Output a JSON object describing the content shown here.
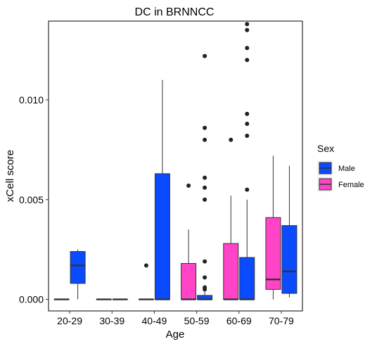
{
  "chart_data": {
    "type": "box",
    "title": "DC in BRNNCC",
    "xlabel": "Age",
    "ylabel": "xCell score",
    "categories": [
      "20-29",
      "30-39",
      "40-49",
      "50-59",
      "60-69",
      "70-79"
    ],
    "y_ticks": [
      0.0,
      0.005,
      0.01
    ],
    "y_tick_labels": [
      "0.000",
      "0.005",
      "0.010"
    ],
    "ylim": [
      -0.00058,
      0.01395
    ],
    "grid": false,
    "legend": {
      "title": "Sex",
      "position": "right",
      "entries": [
        {
          "label": "Male",
          "color": "#0a4bff"
        },
        {
          "label": "Female",
          "color": "#ff44c8"
        }
      ]
    },
    "series": [
      {
        "name": "Male",
        "color": "#0a4bff",
        "boxes": [
          {
            "category": "20-29",
            "whisker_low": 0.0,
            "q1": 0.0008,
            "median": 0.0017,
            "q3": 0.0024,
            "whisker_high": 0.0025,
            "outliers": []
          },
          {
            "category": "30-39",
            "whisker_low": 0.0,
            "q1": 0.0,
            "median": 0.0,
            "q3": 0.0,
            "whisker_high": 0.0,
            "outliers": []
          },
          {
            "category": "40-49",
            "whisker_low": 0.0,
            "q1": 0.0,
            "median": 0.0,
            "q3": 0.0063,
            "whisker_high": 0.011,
            "outliers": []
          },
          {
            "category": "50-59",
            "whisker_low": 0.0,
            "q1": 0.0,
            "median": 0.0,
            "q3": 0.0002,
            "whisker_high": 0.0004,
            "outliers": [
              0.0122,
              0.0086,
              0.008,
              0.0061,
              0.0056,
              0.005,
              0.0019,
              0.0011,
              0.0006,
              0.0005
            ]
          },
          {
            "category": "60-69",
            "whisker_low": 0.0,
            "q1": 0.0,
            "median": 0.0,
            "q3": 0.0021,
            "whisker_high": 0.005,
            "outliers": [
              0.0138,
              0.0135,
              0.0126,
              0.012,
              0.0093,
              0.0088,
              0.0082,
              0.0055
            ]
          },
          {
            "category": "70-79",
            "whisker_low": 0.0001,
            "q1": 0.0003,
            "median": 0.0014,
            "q3": 0.0037,
            "whisker_high": 0.0067,
            "outliers": []
          }
        ]
      },
      {
        "name": "Female",
        "color": "#ff44c8",
        "boxes": [
          {
            "category": "20-29",
            "whisker_low": 0.0,
            "q1": 0.0,
            "median": 0.0,
            "q3": 0.0,
            "whisker_high": 0.0,
            "outliers": []
          },
          {
            "category": "30-39",
            "whisker_low": 0.0,
            "q1": 0.0,
            "median": 0.0,
            "q3": 0.0,
            "whisker_high": 0.0,
            "outliers": []
          },
          {
            "category": "40-49",
            "whisker_low": 0.0,
            "q1": 0.0,
            "median": 0.0,
            "q3": 0.0,
            "whisker_high": 0.0,
            "outliers": [
              0.0017
            ]
          },
          {
            "category": "50-59",
            "whisker_low": 0.0,
            "q1": 0.0,
            "median": 0.0,
            "q3": 0.0018,
            "whisker_high": 0.0035,
            "outliers": [
              0.0057
            ]
          },
          {
            "category": "60-69",
            "whisker_low": 0.0,
            "q1": 0.0,
            "median": 0.0,
            "q3": 0.0028,
            "whisker_high": 0.0052,
            "outliers": [
              0.008
            ]
          },
          {
            "category": "70-79",
            "whisker_low": 0.0,
            "q1": 0.0005,
            "median": 0.001,
            "q3": 0.0041,
            "whisker_high": 0.0072,
            "outliers": []
          }
        ]
      }
    ]
  }
}
